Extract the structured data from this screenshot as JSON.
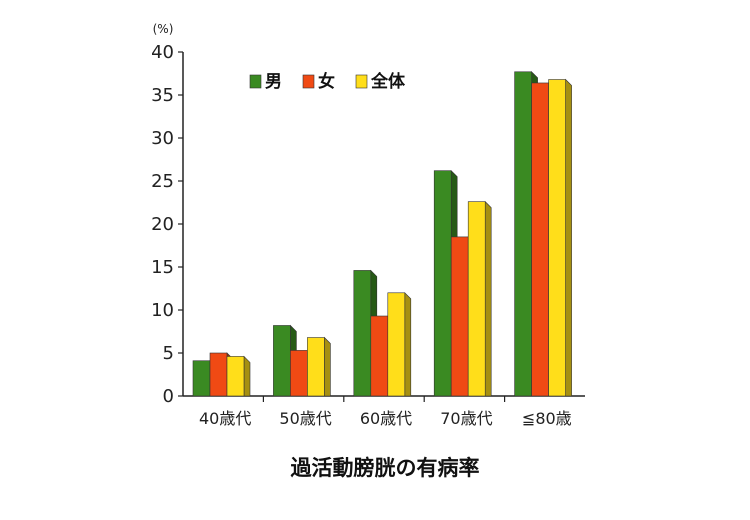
{
  "chart_data": {
    "type": "bar",
    "title": "",
    "unit_label": "(%)",
    "xlabel": "過活動膀胱の有病率",
    "ylabel": "",
    "categories": [
      "40歳代",
      "50歳代",
      "60歳代",
      "70歳代",
      "≦80歳"
    ],
    "series": [
      {
        "name": "男",
        "color": "#3a8a22",
        "values": [
          4.1,
          8.2,
          14.6,
          26.2,
          37.7
        ]
      },
      {
        "name": "女",
        "color": "#f04a14",
        "values": [
          5.0,
          5.3,
          9.3,
          18.5,
          36.4
        ]
      },
      {
        "name": "全体",
        "color": "#ffde1a",
        "values": [
          4.6,
          6.8,
          12.0,
          22.6,
          36.8
        ]
      }
    ],
    "ylim": [
      0,
      40
    ],
    "yticks": [
      0,
      5,
      10,
      15,
      20,
      25,
      30,
      35,
      40
    ],
    "grid": false,
    "legend_position": "top-left"
  }
}
